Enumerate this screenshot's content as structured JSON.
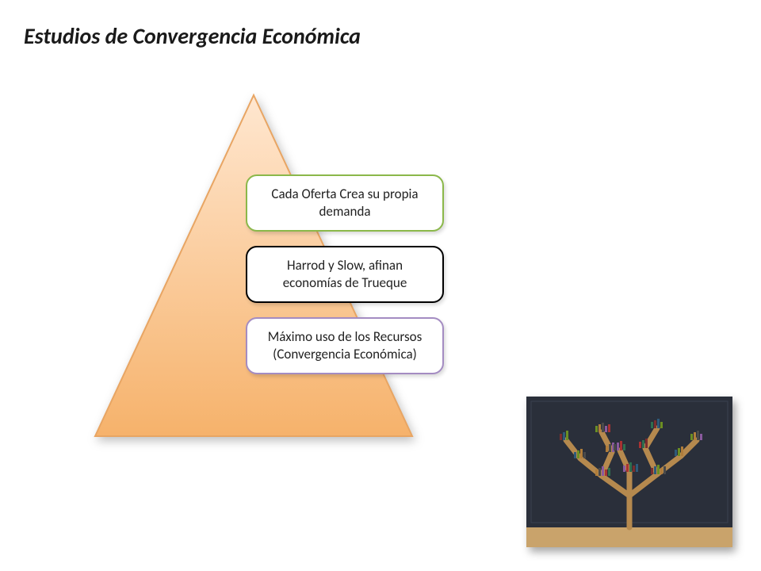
{
  "title": "Estudios de Convergencia Económica",
  "triangle": {
    "gradient_top": "#ffe7d0",
    "gradient_bottom": "#f6b26b",
    "stroke": "#e8a563"
  },
  "boxes": [
    {
      "text": "Cada Oferta Crea su propia demanda",
      "border_color": "#8bb84a"
    },
    {
      "text": "Harrod y Slow, afinan economías de Trueque",
      "border_color": "#000000"
    },
    {
      "text": "Máximo uso de los Recursos (Convergencia Económica)",
      "border_color": "#a48cc2"
    }
  ],
  "photo": {
    "bg": "#2a2f3a",
    "floor": "#c9a36b",
    "trunk": "#b5894e",
    "book_colors": [
      "#7a2e2e",
      "#2e5a7a",
      "#6b8e23",
      "#b07d3a",
      "#4a4a4a",
      "#8a5a9e",
      "#a83232",
      "#2f6e4f"
    ]
  },
  "fonts": {
    "title_size": 28,
    "box_size": 17
  }
}
